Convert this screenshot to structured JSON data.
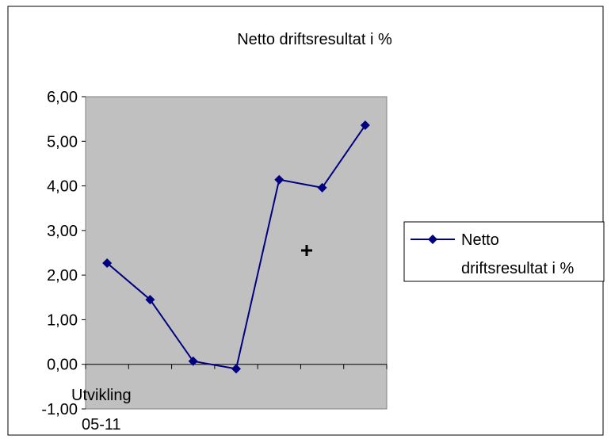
{
  "chart_data": {
    "type": "line",
    "title": "Netto driftsresultat i %",
    "xlabel": "Utvikling 05-11",
    "xlabel_lines": [
      "Utvikling",
      "05-11"
    ],
    "ylabel": "",
    "ylim": [
      -1,
      6
    ],
    "yticks": [
      "-1,00",
      "0,00",
      "1,00",
      "2,00",
      "3,00",
      "4,00",
      "5,00",
      "6,00"
    ],
    "series": [
      {
        "name": "Netto driftsresultat i %",
        "name_lines": [
          "Netto",
          "driftsresultat i %"
        ],
        "values": [
          2.27,
          1.45,
          0.07,
          -0.1,
          4.14,
          3.96,
          5.36
        ]
      }
    ],
    "grid": false,
    "legend_position": "right",
    "colors": {
      "plot_bg": "#c0c0c0",
      "line": "#000080",
      "marker": "#000080"
    }
  }
}
